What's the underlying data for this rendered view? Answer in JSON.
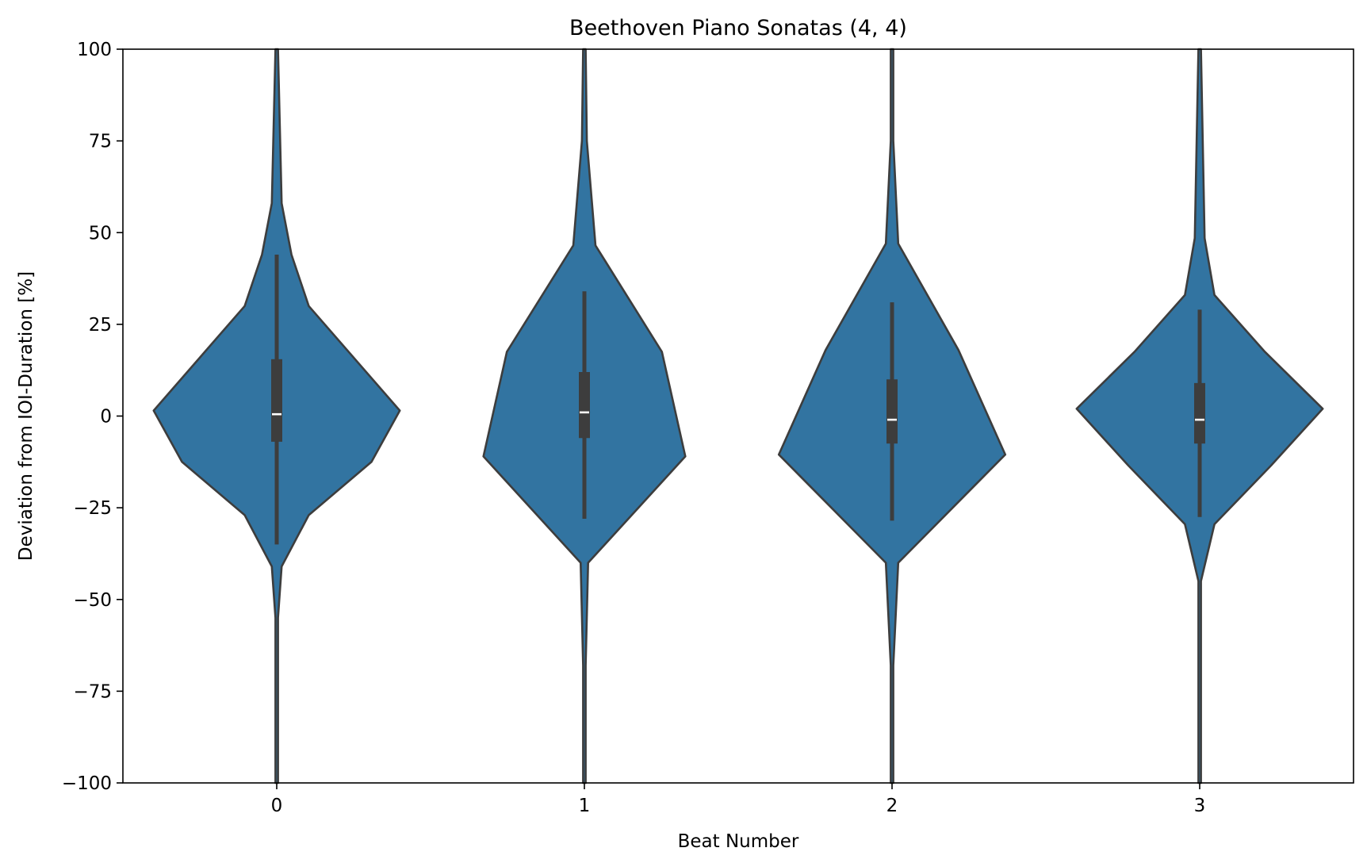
{
  "chart_data": {
    "type": "violin",
    "title": "Beethoven Piano Sonatas (4, 4)",
    "xlabel": "Beat Number",
    "ylabel": "Deviation from IOI-Duration [%]",
    "ylim": [
      -100,
      100
    ],
    "yticks": [
      "100",
      "75",
      "50",
      "25",
      "0",
      "−25",
      "−50",
      "−75",
      "−100"
    ],
    "categories": [
      "0",
      "1",
      "2",
      "3"
    ],
    "grid": false,
    "colors": {
      "fill": "#3274a1",
      "edge": "#3d3d3d",
      "median": "#ffffff"
    },
    "violins": [
      {
        "category": "0",
        "outline": [
          [
            -100,
            0.01
          ],
          [
            -55,
            0.01
          ],
          [
            -41,
            0.04
          ],
          [
            -27,
            0.26
          ],
          [
            -12.5,
            0.77
          ],
          [
            1.5,
            1.0
          ],
          [
            30,
            0.26
          ],
          [
            44,
            0.12
          ],
          [
            58,
            0.04
          ],
          [
            100,
            0.01
          ]
        ],
        "box": {
          "q1": -7,
          "median": 0.5,
          "q3": 15.5,
          "whisker_low": -35,
          "whisker_high": 44
        }
      },
      {
        "category": "1",
        "outline": [
          [
            -100,
            0.01
          ],
          [
            -68,
            0.01
          ],
          [
            -40,
            0.03
          ],
          [
            -11,
            0.82
          ],
          [
            17.5,
            0.63
          ],
          [
            46.5,
            0.09
          ],
          [
            75,
            0.02
          ],
          [
            100,
            0.01
          ]
        ],
        "box": {
          "q1": -6,
          "median": 1,
          "q3": 12,
          "whisker_low": -28,
          "whisker_high": 34
        }
      },
      {
        "category": "2",
        "outline": [
          [
            -100,
            0.01
          ],
          [
            -68,
            0.01
          ],
          [
            -40,
            0.05
          ],
          [
            -10.5,
            0.92
          ],
          [
            18,
            0.54
          ],
          [
            47,
            0.05
          ],
          [
            75,
            0.01
          ],
          [
            100,
            0.01
          ]
        ],
        "box": {
          "q1": -7.5,
          "median": -1,
          "q3": 10,
          "whisker_low": -28.5,
          "whisker_high": 31
        }
      },
      {
        "category": "3",
        "outline": [
          [
            -100,
            0.01
          ],
          [
            -60,
            0.01
          ],
          [
            -45,
            0.01
          ],
          [
            -29.5,
            0.12
          ],
          [
            -13.5,
            0.58
          ],
          [
            2,
            1.0
          ],
          [
            17.5,
            0.53
          ],
          [
            33,
            0.12
          ],
          [
            48.5,
            0.04
          ],
          [
            100,
            0.01
          ]
        ],
        "box": {
          "q1": -7.5,
          "median": -1,
          "q3": 9,
          "whisker_low": -27.5,
          "whisker_high": 29
        }
      }
    ]
  }
}
